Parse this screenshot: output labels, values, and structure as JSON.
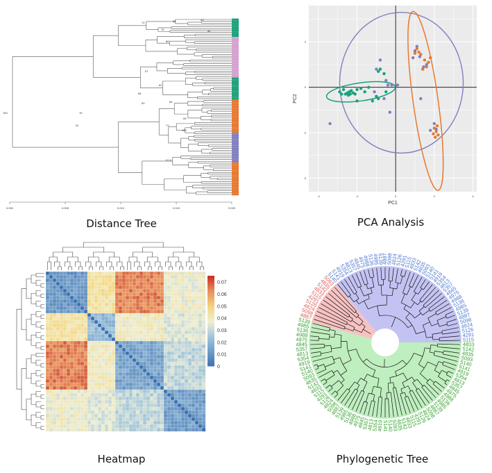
{
  "captions": {
    "distance_tree": "Distance Tree",
    "pca": "PCA Analysis",
    "heatmap": "Heatmap",
    "phylo": "Phylogenetic Tree"
  },
  "colors": {
    "green": "#1aa07a",
    "orange": "#e8772e",
    "purple": "#7f7fbf",
    "tree_line": "#555555",
    "label_green": "#33a02c",
    "label_red": "#e05a5a",
    "label_blue": "#4a78d0",
    "sector_green": "#bfeebf",
    "sector_red": "#f6c2c2",
    "sector_blue": "#c3c3f3"
  },
  "chart_data": [
    {
      "type": "dendrogram",
      "panel": "distance_tree",
      "bootstrap_labels": [
        "72",
        "86",
        "63",
        "76",
        "86",
        "86",
        "67",
        "82",
        "66",
        "69",
        "84",
        "76",
        "51",
        "71",
        "65",
        "100",
        "97.8",
        "100"
      ],
      "x_axis_ticks": [
        "0.000",
        "0.005",
        "0.010",
        "0.015",
        "0.020"
      ],
      "leaf_groups": [
        "green",
        "orange",
        "purple",
        "orange"
      ]
    },
    {
      "type": "scatter",
      "panel": "pca",
      "xlabel": "PC1",
      "ylabel": "PC2",
      "xlim": [
        -4.5,
        4.2
      ],
      "ylim": [
        -4.6,
        3.6
      ],
      "xticks": [
        -4,
        -2,
        0,
        2,
        4
      ],
      "yticks": [
        -4,
        -2,
        0,
        2
      ],
      "grid": true,
      "series": [
        {
          "color": "green",
          "points": [
            [
              -2.9,
              -0.2
            ],
            [
              -2.8,
              -0.3
            ],
            [
              -2.7,
              -0.1
            ],
            [
              -2.6,
              -0.3
            ],
            [
              -2.5,
              -0.25
            ],
            [
              -2.45,
              -0.35
            ],
            [
              -2.4,
              -0.2
            ],
            [
              -2.35,
              -0.3
            ],
            [
              -2.3,
              -0.15
            ],
            [
              -2.2,
              -0.25
            ],
            [
              -2.1,
              -0.3
            ],
            [
              -2.0,
              -0.1
            ],
            [
              -1.8,
              -0.05
            ],
            [
              -1.6,
              -0.2
            ],
            [
              -1.4,
              0.0
            ],
            [
              -1.2,
              -0.6
            ],
            [
              -1.0,
              -0.4
            ],
            [
              -0.9,
              0.7
            ],
            [
              -0.8,
              0.8
            ],
            [
              -0.6,
              0.6
            ],
            [
              -0.5,
              -0.2
            ],
            [
              -0.9,
              -0.5
            ],
            [
              -2.0,
              -0.6
            ]
          ]
        },
        {
          "color": "orange",
          "points": [
            [
              1.0,
              1.5
            ],
            [
              1.1,
              1.7
            ],
            [
              1.2,
              1.55
            ],
            [
              1.3,
              1.45
            ],
            [
              1.5,
              1.2
            ],
            [
              1.6,
              0.9
            ],
            [
              1.4,
              0.8
            ],
            [
              1.7,
              1.1
            ],
            [
              1.8,
              1.3
            ],
            [
              2.0,
              -1.8
            ],
            [
              2.1,
              -1.95
            ],
            [
              2.2,
              -2.1
            ],
            [
              2.05,
              -2.2
            ],
            [
              2.15,
              -1.7
            ],
            [
              1.95,
              -2.05
            ]
          ]
        },
        {
          "color": "purple",
          "points": [
            [
              -0.8,
              1.2
            ],
            [
              -1.0,
              0.8
            ],
            [
              -0.4,
              0.1
            ],
            [
              -0.2,
              0.1
            ],
            [
              0.1,
              0.1
            ],
            [
              -0.6,
              -0.5
            ],
            [
              -1.1,
              -0.2
            ],
            [
              -0.3,
              -1.1
            ],
            [
              0.9,
              1.3
            ],
            [
              1.0,
              1.6
            ],
            [
              1.1,
              1.8
            ],
            [
              1.25,
              1.35
            ],
            [
              1.45,
              0.9
            ],
            [
              1.6,
              1.0
            ],
            [
              1.3,
              -0.5
            ],
            [
              1.8,
              -1.9
            ],
            [
              2.0,
              -1.6
            ],
            [
              2.1,
              -1.85
            ],
            [
              -3.4,
              -1.6
            ],
            [
              -0.5,
              0.3
            ]
          ]
        }
      ]
    },
    {
      "type": "heatmap",
      "panel": "heatmap",
      "colorbar_ticks": [
        "0.07",
        "0.06",
        "0.05",
        "0.04",
        "0.03",
        "0.02",
        "0.01",
        "0"
      ],
      "value_range": [
        0,
        0.075
      ],
      "cluster_block_sizes": [
        6,
        4,
        8,
        5
      ]
    },
    {
      "type": "circular_tree",
      "panel": "phylo",
      "sectors": [
        {
          "name": "green",
          "start_deg": 165,
          "end_deg": 360
        },
        {
          "name": "red",
          "start_deg": 130,
          "end_deg": 165
        },
        {
          "name": "blue",
          "start_deg": 0,
          "end_deg": 130
        }
      ],
      "tip_labels_visible": [
        "5115",
        "4291",
        "5126",
        "4824",
        "5098",
        "4887",
        "5139",
        "4985",
        "5136",
        "4988",
        "4975",
        "4845",
        "5357",
        "4813",
        "5354",
        "4919",
        "5141",
        "5140",
        "5093",
        "4835",
        "5142",
        "4833"
      ]
    }
  ]
}
